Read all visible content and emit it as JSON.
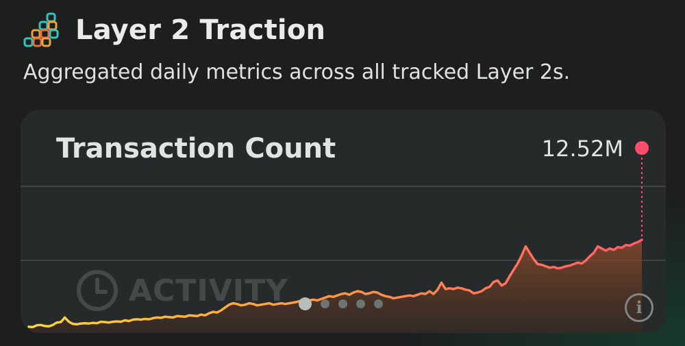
{
  "header": {
    "title": "Layer 2 Traction",
    "subtitle": "Aggregated daily metrics across all tracked Layer 2s.",
    "logo_icon": "stacked-blocks-icon"
  },
  "card": {
    "title": "Transaction Count",
    "current_value": "12.52M",
    "watermark_label": "ACTIVITY",
    "watermark_icon": "clock-icon",
    "info_label": "i",
    "pager": {
      "total": 5,
      "active_index": 0
    }
  },
  "colors": {
    "line_start": "#ffd43b",
    "line_end": "#ff5c6a",
    "endpoint": "#ff4d6a",
    "card_bg": "#262a2a",
    "page_bg": "#1d1f1f"
  },
  "chart_data": {
    "type": "area",
    "title": "Transaction Count",
    "latest_value_label": "12.52M",
    "y_gridlines": 2,
    "grid": true,
    "series": [
      {
        "values": [
          0.3,
          0.25,
          0.5,
          0.55,
          0.4,
          0.35,
          0.55,
          0.9,
          0.95,
          1.6,
          1.0,
          0.7,
          0.65,
          0.75,
          0.8,
          0.75,
          0.85,
          0.8,
          1.0,
          0.95,
          0.9,
          1.0,
          1.05,
          1.0,
          1.2,
          1.1,
          1.3,
          1.35,
          1.3,
          1.4,
          1.35,
          1.5,
          1.6,
          1.55,
          1.7,
          1.65,
          1.6,
          1.8,
          1.75,
          1.7,
          1.9,
          1.85,
          1.8,
          2.0,
          1.9,
          2.2,
          2.4,
          2.3,
          2.6,
          3.0,
          3.4,
          3.6,
          3.5,
          3.3,
          3.4,
          3.6,
          3.5,
          3.3,
          3.4,
          3.5,
          3.6,
          3.4,
          3.5,
          3.6,
          3.5,
          3.6,
          3.7,
          3.8,
          4.0,
          3.9,
          4.0,
          4.1,
          4.0,
          4.2,
          4.4,
          4.6,
          4.5,
          4.7,
          4.9,
          5.0,
          4.8,
          5.1,
          5.3,
          5.2,
          4.9,
          5.0,
          5.2,
          5.1,
          4.8,
          4.6,
          4.5,
          4.3,
          4.4,
          4.5,
          4.6,
          4.7,
          4.6,
          4.8,
          5.0,
          4.9,
          5.3,
          4.9,
          5.5,
          6.5,
          5.6,
          5.7,
          5.6,
          5.8,
          5.7,
          5.5,
          5.4,
          5.0,
          5.1,
          5.3,
          5.7,
          5.9,
          6.6,
          6.8,
          6.1,
          6.4,
          7.4,
          8.3,
          9.2,
          10.3,
          11.6,
          10.7,
          9.8,
          9.1,
          9.0,
          8.8,
          8.6,
          8.7,
          8.5,
          8.6,
          8.8,
          8.9,
          9.1,
          9.3,
          9.2,
          9.6,
          10.2,
          10.7,
          11.6,
          11.3,
          11.0,
          11.3,
          11.1,
          11.5,
          11.4,
          11.8,
          11.7,
          12.0,
          12.2,
          12.52
        ]
      }
    ]
  }
}
